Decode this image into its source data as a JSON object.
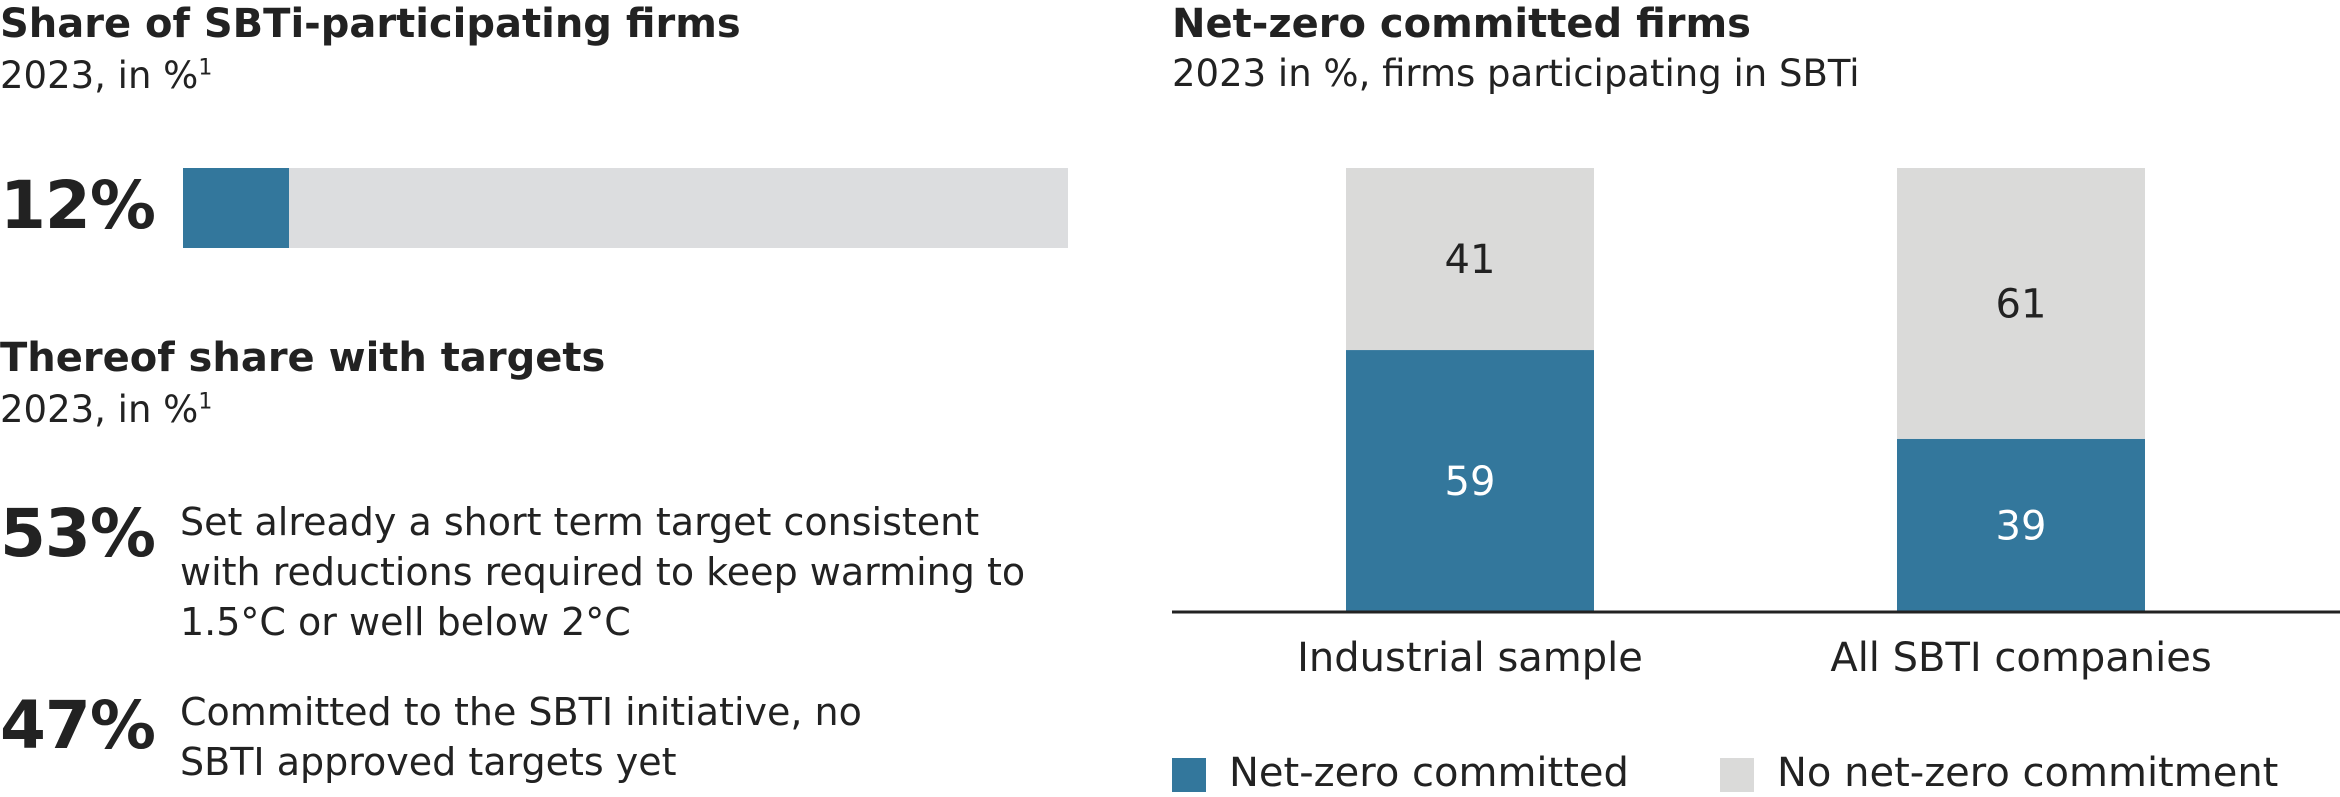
{
  "left": {
    "share": {
      "title": "Share of SBTi-participating firms",
      "subtitle": "2023, in %",
      "footnote": "1",
      "value_label": "12%",
      "value": 12,
      "bar_color": "#33779c",
      "track_color": "#dcdddf"
    },
    "thereof": {
      "title": "Thereof share with targets",
      "subtitle": "2023, in %",
      "footnote": "1",
      "items": [
        {
          "value_label": "53%",
          "text": "Set already a short term target consistent with reductions required to keep warming to 1.5°C or well below 2°C"
        },
        {
          "value_label": "47%",
          "text": "Committed to the SBTI initiative, no SBTI approved targets yet"
        }
      ]
    }
  },
  "chart_data": {
    "type": "bar",
    "stacked": true,
    "title": "Net-zero committed firms",
    "subtitle": "2023 in %, firms participating in SBTi",
    "categories": [
      "Industrial sample",
      "All SBTI companies"
    ],
    "series": [
      {
        "name": "Net-zero committed",
        "values": [
          59,
          39
        ],
        "color": "#33779c",
        "label_color": "#ffffff"
      },
      {
        "name": "No net-zero commitment",
        "values": [
          41,
          61
        ],
        "color": "#dadad9",
        "label_color": "#222222"
      }
    ],
    "ylim": [
      0,
      100
    ],
    "grid": false,
    "legend_position": "bottom"
  }
}
